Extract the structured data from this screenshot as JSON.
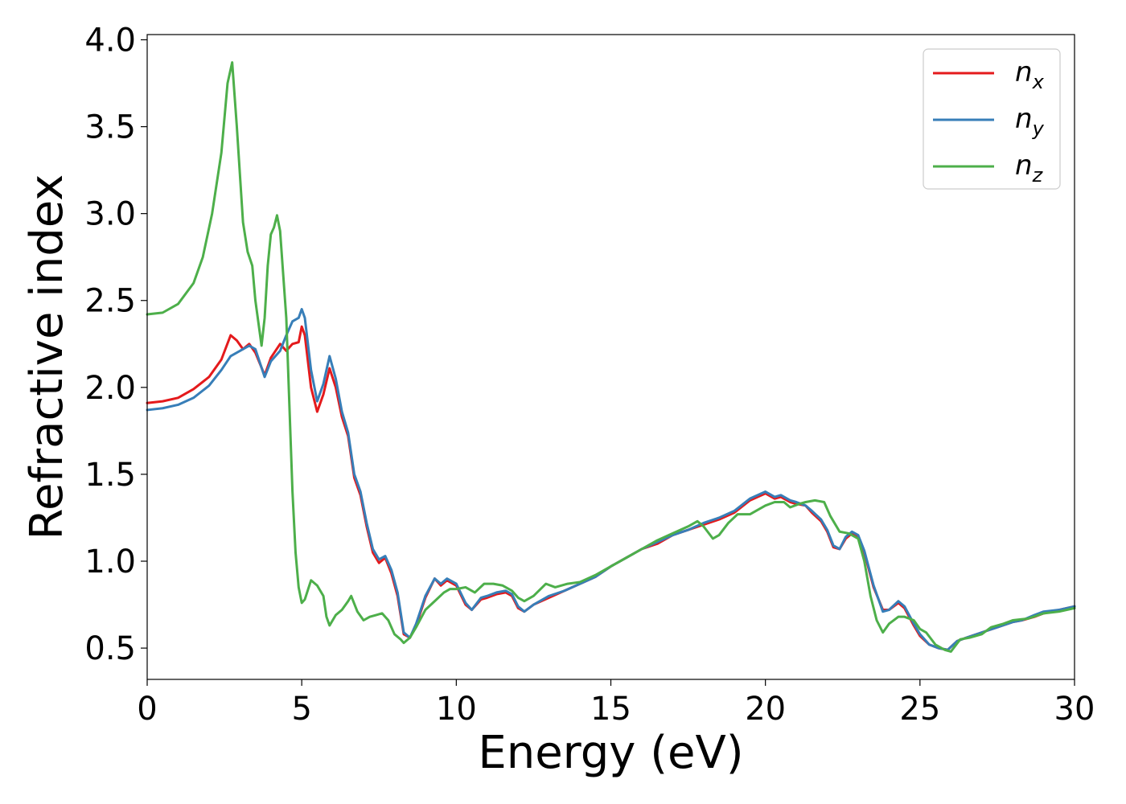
{
  "chart_data": {
    "type": "line",
    "title": "",
    "xlabel": "Energy (eV)",
    "ylabel": "Refractive index",
    "xlim": [
      0,
      30
    ],
    "ylim": [
      0.32,
      4.03
    ],
    "xticks": [
      0,
      5,
      10,
      15,
      20,
      25,
      30
    ],
    "xtick_labels": [
      "0",
      "5",
      "10",
      "15",
      "20",
      "25",
      "30"
    ],
    "yticks": [
      0.5,
      1.0,
      1.5,
      2.0,
      2.5,
      3.0,
      3.5,
      4.0
    ],
    "ytick_labels": [
      "0.5",
      "1.0",
      "1.5",
      "2.0",
      "2.5",
      "3.0",
      "3.5",
      "4.0"
    ],
    "grid": false,
    "legend": "top-right",
    "series": [
      {
        "name": "n_x",
        "label_base": "n",
        "label_sub": "x",
        "color": "#e41a1c",
        "points": [
          [
            0,
            1.91
          ],
          [
            0.5,
            1.92
          ],
          [
            1.0,
            1.94
          ],
          [
            1.5,
            1.99
          ],
          [
            2.0,
            2.06
          ],
          [
            2.4,
            2.16
          ],
          [
            2.7,
            2.3
          ],
          [
            2.9,
            2.27
          ],
          [
            3.1,
            2.22
          ],
          [
            3.3,
            2.25
          ],
          [
            3.5,
            2.2
          ],
          [
            3.8,
            2.07
          ],
          [
            4.0,
            2.17
          ],
          [
            4.3,
            2.25
          ],
          [
            4.5,
            2.21
          ],
          [
            4.7,
            2.25
          ],
          [
            4.9,
            2.26
          ],
          [
            5.0,
            2.35
          ],
          [
            5.1,
            2.3
          ],
          [
            5.3,
            2.0
          ],
          [
            5.5,
            1.86
          ],
          [
            5.7,
            1.96
          ],
          [
            5.9,
            2.11
          ],
          [
            6.1,
            2.0
          ],
          [
            6.3,
            1.83
          ],
          [
            6.5,
            1.72
          ],
          [
            6.7,
            1.48
          ],
          [
            6.9,
            1.38
          ],
          [
            7.1,
            1.2
          ],
          [
            7.3,
            1.05
          ],
          [
            7.5,
            0.99
          ],
          [
            7.7,
            1.02
          ],
          [
            7.9,
            0.93
          ],
          [
            8.1,
            0.8
          ],
          [
            8.3,
            0.58
          ],
          [
            8.5,
            0.56
          ],
          [
            8.7,
            0.63
          ],
          [
            9.0,
            0.79
          ],
          [
            9.3,
            0.9
          ],
          [
            9.5,
            0.86
          ],
          [
            9.7,
            0.89
          ],
          [
            10.0,
            0.86
          ],
          [
            10.3,
            0.75
          ],
          [
            10.5,
            0.72
          ],
          [
            10.8,
            0.78
          ],
          [
            11.0,
            0.79
          ],
          [
            11.3,
            0.81
          ],
          [
            11.6,
            0.82
          ],
          [
            11.8,
            0.8
          ],
          [
            12.0,
            0.73
          ],
          [
            12.2,
            0.71
          ],
          [
            12.5,
            0.75
          ],
          [
            13.0,
            0.79
          ],
          [
            13.5,
            0.83
          ],
          [
            14.0,
            0.87
          ],
          [
            14.5,
            0.91
          ],
          [
            15.0,
            0.97
          ],
          [
            15.5,
            1.02
          ],
          [
            16.0,
            1.07
          ],
          [
            16.5,
            1.1
          ],
          [
            17.0,
            1.15
          ],
          [
            17.5,
            1.18
          ],
          [
            18.0,
            1.21
          ],
          [
            18.5,
            1.24
          ],
          [
            19.0,
            1.28
          ],
          [
            19.5,
            1.35
          ],
          [
            20.0,
            1.39
          ],
          [
            20.3,
            1.36
          ],
          [
            20.5,
            1.37
          ],
          [
            20.8,
            1.34
          ],
          [
            21.0,
            1.33
          ],
          [
            21.3,
            1.32
          ],
          [
            21.5,
            1.28
          ],
          [
            21.8,
            1.23
          ],
          [
            22.0,
            1.17
          ],
          [
            22.2,
            1.08
          ],
          [
            22.4,
            1.07
          ],
          [
            22.6,
            1.13
          ],
          [
            22.8,
            1.16
          ],
          [
            23.0,
            1.14
          ],
          [
            23.2,
            1.05
          ],
          [
            23.5,
            0.85
          ],
          [
            23.8,
            0.72
          ],
          [
            24.0,
            0.72
          ],
          [
            24.3,
            0.76
          ],
          [
            24.5,
            0.73
          ],
          [
            24.8,
            0.63
          ],
          [
            25.0,
            0.57
          ],
          [
            25.3,
            0.52
          ],
          [
            25.6,
            0.5
          ],
          [
            25.9,
            0.49
          ],
          [
            26.2,
            0.54
          ],
          [
            26.5,
            0.56
          ],
          [
            27.0,
            0.59
          ],
          [
            27.5,
            0.62
          ],
          [
            28.0,
            0.65
          ],
          [
            28.3,
            0.66
          ],
          [
            28.7,
            0.68
          ],
          [
            29.0,
            0.7
          ],
          [
            29.5,
            0.72
          ],
          [
            30.0,
            0.74
          ]
        ]
      },
      {
        "name": "n_y",
        "label_base": "n",
        "label_sub": "y",
        "color": "#377eb8",
        "points": [
          [
            0,
            1.87
          ],
          [
            0.5,
            1.88
          ],
          [
            1.0,
            1.9
          ],
          [
            1.5,
            1.94
          ],
          [
            2.0,
            2.01
          ],
          [
            2.4,
            2.1
          ],
          [
            2.7,
            2.18
          ],
          [
            3.0,
            2.21
          ],
          [
            3.3,
            2.24
          ],
          [
            3.5,
            2.22
          ],
          [
            3.8,
            2.06
          ],
          [
            4.0,
            2.15
          ],
          [
            4.3,
            2.21
          ],
          [
            4.5,
            2.3
          ],
          [
            4.7,
            2.38
          ],
          [
            4.9,
            2.4
          ],
          [
            5.0,
            2.45
          ],
          [
            5.1,
            2.4
          ],
          [
            5.3,
            2.1
          ],
          [
            5.5,
            1.92
          ],
          [
            5.7,
            2.02
          ],
          [
            5.9,
            2.18
          ],
          [
            6.1,
            2.05
          ],
          [
            6.3,
            1.86
          ],
          [
            6.5,
            1.74
          ],
          [
            6.7,
            1.5
          ],
          [
            6.9,
            1.4
          ],
          [
            7.1,
            1.22
          ],
          [
            7.3,
            1.07
          ],
          [
            7.5,
            1.01
          ],
          [
            7.7,
            1.03
          ],
          [
            7.9,
            0.95
          ],
          [
            8.1,
            0.82
          ],
          [
            8.3,
            0.59
          ],
          [
            8.5,
            0.56
          ],
          [
            8.7,
            0.64
          ],
          [
            9.0,
            0.8
          ],
          [
            9.3,
            0.9
          ],
          [
            9.5,
            0.87
          ],
          [
            9.7,
            0.9
          ],
          [
            10.0,
            0.87
          ],
          [
            10.3,
            0.76
          ],
          [
            10.5,
            0.72
          ],
          [
            10.8,
            0.79
          ],
          [
            11.0,
            0.8
          ],
          [
            11.3,
            0.82
          ],
          [
            11.6,
            0.83
          ],
          [
            11.8,
            0.81
          ],
          [
            12.0,
            0.74
          ],
          [
            12.2,
            0.71
          ],
          [
            12.5,
            0.75
          ],
          [
            13.0,
            0.8
          ],
          [
            13.5,
            0.83
          ],
          [
            14.0,
            0.87
          ],
          [
            14.5,
            0.91
          ],
          [
            15.0,
            0.97
          ],
          [
            15.5,
            1.02
          ],
          [
            16.0,
            1.07
          ],
          [
            16.5,
            1.11
          ],
          [
            17.0,
            1.15
          ],
          [
            17.5,
            1.18
          ],
          [
            18.0,
            1.22
          ],
          [
            18.5,
            1.25
          ],
          [
            19.0,
            1.29
          ],
          [
            19.5,
            1.36
          ],
          [
            20.0,
            1.4
          ],
          [
            20.3,
            1.37
          ],
          [
            20.5,
            1.38
          ],
          [
            20.8,
            1.35
          ],
          [
            21.0,
            1.34
          ],
          [
            21.3,
            1.32
          ],
          [
            21.5,
            1.29
          ],
          [
            21.8,
            1.24
          ],
          [
            22.0,
            1.18
          ],
          [
            22.2,
            1.09
          ],
          [
            22.4,
            1.07
          ],
          [
            22.6,
            1.14
          ],
          [
            22.8,
            1.17
          ],
          [
            23.0,
            1.15
          ],
          [
            23.2,
            1.06
          ],
          [
            23.5,
            0.86
          ],
          [
            23.8,
            0.71
          ],
          [
            24.0,
            0.72
          ],
          [
            24.3,
            0.77
          ],
          [
            24.5,
            0.74
          ],
          [
            24.8,
            0.64
          ],
          [
            25.0,
            0.58
          ],
          [
            25.3,
            0.52
          ],
          [
            25.6,
            0.5
          ],
          [
            25.9,
            0.49
          ],
          [
            26.2,
            0.54
          ],
          [
            26.5,
            0.56
          ],
          [
            27.0,
            0.59
          ],
          [
            27.5,
            0.62
          ],
          [
            28.0,
            0.65
          ],
          [
            28.3,
            0.66
          ],
          [
            28.7,
            0.69
          ],
          [
            29.0,
            0.71
          ],
          [
            29.5,
            0.72
          ],
          [
            30.0,
            0.74
          ]
        ]
      },
      {
        "name": "n_z",
        "label_base": "n",
        "label_sub": "z",
        "color": "#4daf4a",
        "points": [
          [
            0,
            2.42
          ],
          [
            0.5,
            2.43
          ],
          [
            1.0,
            2.48
          ],
          [
            1.5,
            2.6
          ],
          [
            1.8,
            2.75
          ],
          [
            2.1,
            3.0
          ],
          [
            2.4,
            3.35
          ],
          [
            2.6,
            3.75
          ],
          [
            2.75,
            3.87
          ],
          [
            2.9,
            3.5
          ],
          [
            3.1,
            2.95
          ],
          [
            3.25,
            2.78
          ],
          [
            3.4,
            2.7
          ],
          [
            3.5,
            2.5
          ],
          [
            3.7,
            2.24
          ],
          [
            3.8,
            2.4
          ],
          [
            3.9,
            2.7
          ],
          [
            4.0,
            2.88
          ],
          [
            4.1,
            2.92
          ],
          [
            4.2,
            2.99
          ],
          [
            4.3,
            2.9
          ],
          [
            4.5,
            2.4
          ],
          [
            4.6,
            1.9
          ],
          [
            4.7,
            1.4
          ],
          [
            4.8,
            1.05
          ],
          [
            4.9,
            0.85
          ],
          [
            5.0,
            0.76
          ],
          [
            5.1,
            0.78
          ],
          [
            5.3,
            0.89
          ],
          [
            5.5,
            0.86
          ],
          [
            5.7,
            0.8
          ],
          [
            5.8,
            0.68
          ],
          [
            5.9,
            0.63
          ],
          [
            6.1,
            0.69
          ],
          [
            6.3,
            0.72
          ],
          [
            6.5,
            0.77
          ],
          [
            6.6,
            0.8
          ],
          [
            6.8,
            0.71
          ],
          [
            7.0,
            0.66
          ],
          [
            7.2,
            0.68
          ],
          [
            7.4,
            0.69
          ],
          [
            7.6,
            0.7
          ],
          [
            7.8,
            0.66
          ],
          [
            8.0,
            0.58
          ],
          [
            8.2,
            0.55
          ],
          [
            8.3,
            0.53
          ],
          [
            8.5,
            0.56
          ],
          [
            8.7,
            0.62
          ],
          [
            9.0,
            0.72
          ],
          [
            9.3,
            0.77
          ],
          [
            9.6,
            0.82
          ],
          [
            9.8,
            0.84
          ],
          [
            10.0,
            0.84
          ],
          [
            10.3,
            0.85
          ],
          [
            10.6,
            0.82
          ],
          [
            10.9,
            0.87
          ],
          [
            11.2,
            0.87
          ],
          [
            11.5,
            0.86
          ],
          [
            11.8,
            0.83
          ],
          [
            12.0,
            0.79
          ],
          [
            12.2,
            0.77
          ],
          [
            12.5,
            0.8
          ],
          [
            12.9,
            0.87
          ],
          [
            13.2,
            0.85
          ],
          [
            13.6,
            0.87
          ],
          [
            14.0,
            0.88
          ],
          [
            14.5,
            0.92
          ],
          [
            15.0,
            0.97
          ],
          [
            15.5,
            1.02
          ],
          [
            16.0,
            1.07
          ],
          [
            16.5,
            1.12
          ],
          [
            17.0,
            1.16
          ],
          [
            17.5,
            1.2
          ],
          [
            17.8,
            1.23
          ],
          [
            18.0,
            1.2
          ],
          [
            18.3,
            1.13
          ],
          [
            18.5,
            1.15
          ],
          [
            18.8,
            1.22
          ],
          [
            19.1,
            1.27
          ],
          [
            19.5,
            1.27
          ],
          [
            20.0,
            1.32
          ],
          [
            20.3,
            1.34
          ],
          [
            20.6,
            1.34
          ],
          [
            20.8,
            1.31
          ],
          [
            21.1,
            1.33
          ],
          [
            21.3,
            1.34
          ],
          [
            21.6,
            1.35
          ],
          [
            21.9,
            1.34
          ],
          [
            22.1,
            1.26
          ],
          [
            22.4,
            1.17
          ],
          [
            22.7,
            1.16
          ],
          [
            23.0,
            1.13
          ],
          [
            23.2,
            1.0
          ],
          [
            23.4,
            0.8
          ],
          [
            23.6,
            0.66
          ],
          [
            23.8,
            0.59
          ],
          [
            24.0,
            0.64
          ],
          [
            24.3,
            0.68
          ],
          [
            24.5,
            0.68
          ],
          [
            24.8,
            0.66
          ],
          [
            25.0,
            0.61
          ],
          [
            25.2,
            0.59
          ],
          [
            25.5,
            0.52
          ],
          [
            25.8,
            0.49
          ],
          [
            26.0,
            0.48
          ],
          [
            26.3,
            0.55
          ],
          [
            26.6,
            0.56
          ],
          [
            27.0,
            0.58
          ],
          [
            27.3,
            0.62
          ],
          [
            27.7,
            0.64
          ],
          [
            28.0,
            0.66
          ],
          [
            28.5,
            0.67
          ],
          [
            29.0,
            0.7
          ],
          [
            29.5,
            0.71
          ],
          [
            30.0,
            0.73
          ]
        ]
      }
    ]
  }
}
